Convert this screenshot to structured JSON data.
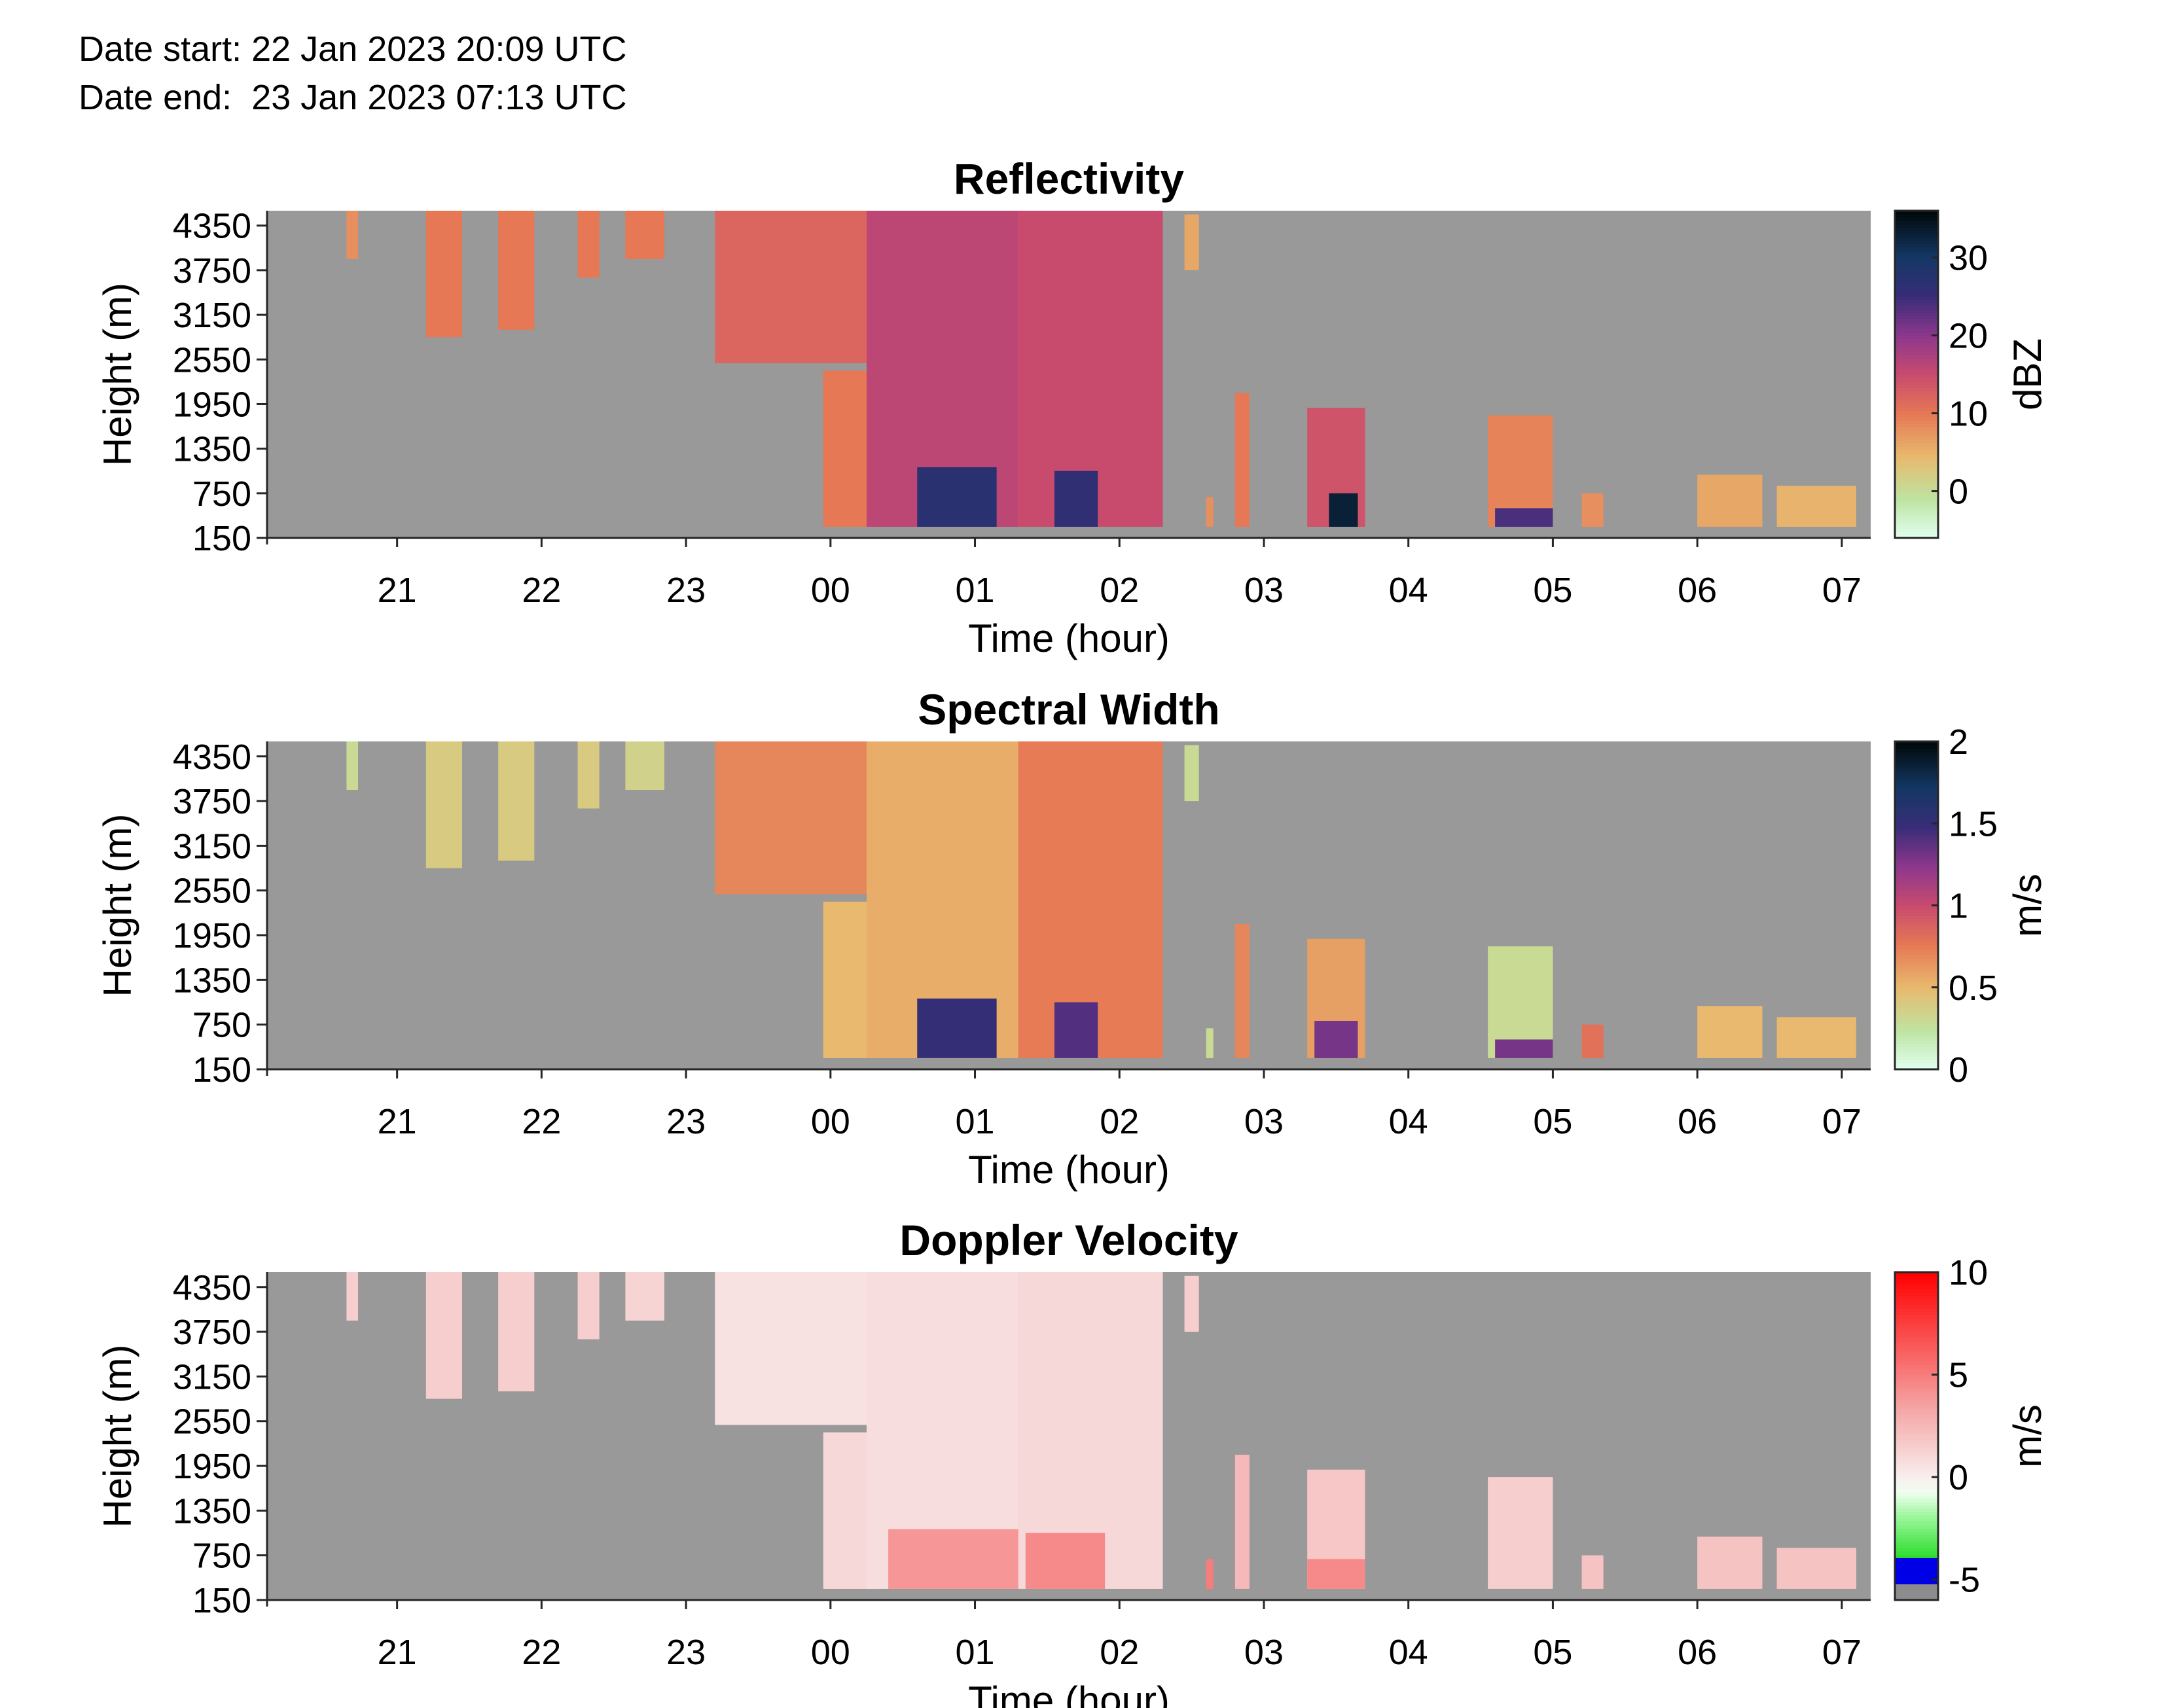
{
  "header": {
    "date_start_label": "Date start:",
    "date_start": "22 Jan 2023 20:09 UTC",
    "date_end_label": "Date end:",
    "date_end": "23 Jan 2023 07:13 UTC"
  },
  "chart_data": [
    {
      "type": "heatmap",
      "title": "Reflectivity",
      "xlabel": "Time (hour)",
      "ylabel": "Height (m)",
      "x_ticks": [
        "21",
        "22",
        "23",
        "00",
        "01",
        "02",
        "03",
        "04",
        "05",
        "06",
        "07"
      ],
      "y_ticks": [
        "150",
        "750",
        "1350",
        "1950",
        "2550",
        "3150",
        "3750",
        "4350"
      ],
      "xlim": [
        20.1,
        31.2
      ],
      "ylim": [
        150,
        4550
      ],
      "colorbar": {
        "label": "dBZ",
        "ticks": [
          "0",
          "10",
          "20",
          "30"
        ],
        "range": [
          -6,
          36
        ]
      },
      "colormap": "reflectivity",
      "background": "#999999",
      "grid": false,
      "echoes": [
        {
          "t_start": 20.65,
          "t_end": 20.73,
          "h_bottom": 3900,
          "h_top": 4550,
          "value": 8
        },
        {
          "t_start": 21.2,
          "t_end": 21.45,
          "h_bottom": 2850,
          "h_top": 4550,
          "value": 10
        },
        {
          "t_start": 21.7,
          "t_end": 21.95,
          "h_bottom": 2950,
          "h_top": 4550,
          "value": 10
        },
        {
          "t_start": 22.25,
          "t_end": 22.4,
          "h_bottom": 3650,
          "h_top": 4550,
          "value": 10
        },
        {
          "t_start": 22.58,
          "t_end": 22.85,
          "h_bottom": 3900,
          "h_top": 4550,
          "value": 10
        },
        {
          "t_start": 23.2,
          "t_end": 24.7,
          "h_bottom": 2500,
          "h_top": 4550,
          "value": 12
        },
        {
          "t_start": 23.95,
          "t_end": 24.35,
          "h_bottom": 300,
          "h_top": 2400,
          "value": 10
        },
        {
          "t_start": 24.25,
          "t_end": 25.3,
          "h_bottom": 300,
          "h_top": 4550,
          "value": 16
        },
        {
          "t_start": 24.6,
          "t_end": 25.15,
          "h_bottom": 300,
          "h_top": 1100,
          "value": 27
        },
        {
          "t_start": 25.3,
          "t_end": 26.3,
          "h_bottom": 300,
          "h_top": 4550,
          "value": 15
        },
        {
          "t_start": 25.55,
          "t_end": 25.85,
          "h_bottom": 300,
          "h_top": 1050,
          "value": 26
        },
        {
          "t_start": 26.45,
          "t_end": 26.55,
          "h_bottom": 3750,
          "h_top": 4500,
          "value": 6
        },
        {
          "t_start": 26.6,
          "t_end": 26.65,
          "h_bottom": 300,
          "h_top": 700,
          "value": 8
        },
        {
          "t_start": 26.8,
          "t_end": 26.9,
          "h_bottom": 300,
          "h_top": 2100,
          "value": 10
        },
        {
          "t_start": 27.3,
          "t_end": 27.7,
          "h_bottom": 300,
          "h_top": 1900,
          "value": 14
        },
        {
          "t_start": 27.45,
          "t_end": 27.65,
          "h_bottom": 300,
          "h_top": 750,
          "value": 33
        },
        {
          "t_start": 28.55,
          "t_end": 29.0,
          "h_bottom": 300,
          "h_top": 1800,
          "value": 9
        },
        {
          "t_start": 28.6,
          "t_end": 29.0,
          "h_bottom": 300,
          "h_top": 550,
          "value": 24
        },
        {
          "t_start": 29.2,
          "t_end": 29.35,
          "h_bottom": 300,
          "h_top": 750,
          "value": 8
        },
        {
          "t_start": 30.0,
          "t_end": 30.45,
          "h_bottom": 300,
          "h_top": 1000,
          "value": 6
        },
        {
          "t_start": 30.55,
          "t_end": 31.1,
          "h_bottom": 300,
          "h_top": 850,
          "value": 5
        }
      ]
    },
    {
      "type": "heatmap",
      "title": "Spectral Width",
      "xlabel": "Time (hour)",
      "ylabel": "Height (m)",
      "x_ticks": [
        "21",
        "22",
        "23",
        "00",
        "01",
        "02",
        "03",
        "04",
        "05",
        "06",
        "07"
      ],
      "y_ticks": [
        "150",
        "750",
        "1350",
        "1950",
        "2550",
        "3150",
        "3750",
        "4350"
      ],
      "xlim": [
        20.1,
        31.2
      ],
      "ylim": [
        150,
        4550
      ],
      "colorbar": {
        "label": "m/s",
        "ticks": [
          "0",
          "0.5",
          "1",
          "1.5",
          "2"
        ],
        "range": [
          0,
          2
        ]
      },
      "colormap": "reflectivity",
      "background": "#999999",
      "grid": false,
      "echoes": [
        {
          "t_start": 20.65,
          "t_end": 20.73,
          "h_bottom": 3900,
          "h_top": 4550,
          "value": 0.3
        },
        {
          "t_start": 21.2,
          "t_end": 21.45,
          "h_bottom": 2850,
          "h_top": 4550,
          "value": 0.4
        },
        {
          "t_start": 21.7,
          "t_end": 21.95,
          "h_bottom": 2950,
          "h_top": 4550,
          "value": 0.4
        },
        {
          "t_start": 22.25,
          "t_end": 22.4,
          "h_bottom": 3650,
          "h_top": 4550,
          "value": 0.4
        },
        {
          "t_start": 22.58,
          "t_end": 22.85,
          "h_bottom": 3900,
          "h_top": 4550,
          "value": 0.35
        },
        {
          "t_start": 23.2,
          "t_end": 24.7,
          "h_bottom": 2500,
          "h_top": 4550,
          "value": 0.7
        },
        {
          "t_start": 23.95,
          "t_end": 24.35,
          "h_bottom": 300,
          "h_top": 2400,
          "value": 0.5
        },
        {
          "t_start": 24.25,
          "t_end": 25.3,
          "h_bottom": 300,
          "h_top": 4550,
          "value": 0.55
        },
        {
          "t_start": 24.6,
          "t_end": 25.15,
          "h_bottom": 300,
          "h_top": 1100,
          "value": 1.5
        },
        {
          "t_start": 25.3,
          "t_end": 26.3,
          "h_bottom": 300,
          "h_top": 4550,
          "value": 0.75
        },
        {
          "t_start": 25.55,
          "t_end": 25.85,
          "h_bottom": 300,
          "h_top": 1050,
          "value": 1.4
        },
        {
          "t_start": 26.45,
          "t_end": 26.55,
          "h_bottom": 3750,
          "h_top": 4500,
          "value": 0.3
        },
        {
          "t_start": 26.6,
          "t_end": 26.65,
          "h_bottom": 300,
          "h_top": 700,
          "value": 0.3
        },
        {
          "t_start": 26.8,
          "t_end": 26.9,
          "h_bottom": 300,
          "h_top": 2100,
          "value": 0.7
        },
        {
          "t_start": 27.3,
          "t_end": 27.7,
          "h_bottom": 300,
          "h_top": 1900,
          "value": 0.6
        },
        {
          "t_start": 27.35,
          "t_end": 27.65,
          "h_bottom": 300,
          "h_top": 800,
          "value": 1.3
        },
        {
          "t_start": 28.55,
          "t_end": 29.0,
          "h_bottom": 300,
          "h_top": 1800,
          "value": 0.3
        },
        {
          "t_start": 28.6,
          "t_end": 29.0,
          "h_bottom": 300,
          "h_top": 550,
          "value": 1.3
        },
        {
          "t_start": 29.2,
          "t_end": 29.35,
          "h_bottom": 300,
          "h_top": 750,
          "value": 0.8
        },
        {
          "t_start": 30.0,
          "t_end": 30.45,
          "h_bottom": 300,
          "h_top": 1000,
          "value": 0.5
        },
        {
          "t_start": 30.55,
          "t_end": 31.1,
          "h_bottom": 300,
          "h_top": 850,
          "value": 0.5
        }
      ]
    },
    {
      "type": "heatmap",
      "title": "Doppler Velocity",
      "xlabel": "Time (hour)",
      "ylabel": "Height (m)",
      "x_ticks": [
        "21",
        "22",
        "23",
        "00",
        "01",
        "02",
        "03",
        "04",
        "05",
        "06",
        "07"
      ],
      "y_ticks": [
        "150",
        "750",
        "1350",
        "1950",
        "2550",
        "3150",
        "3750",
        "4350"
      ],
      "xlim": [
        20.1,
        31.2
      ],
      "ylim": [
        150,
        4550
      ],
      "colorbar": {
        "label": "m/s",
        "ticks": [
          "-5",
          "0",
          "5",
          "10"
        ],
        "range": [
          -6,
          10
        ]
      },
      "colormap": "velocity",
      "background": "#999999",
      "grid": false,
      "echoes": [
        {
          "t_start": 20.65,
          "t_end": 20.73,
          "h_bottom": 3900,
          "h_top": 4550,
          "value": 1.5
        },
        {
          "t_start": 21.2,
          "t_end": 21.45,
          "h_bottom": 2850,
          "h_top": 4550,
          "value": 1.5
        },
        {
          "t_start": 21.7,
          "t_end": 21.95,
          "h_bottom": 2950,
          "h_top": 4550,
          "value": 1.5
        },
        {
          "t_start": 22.25,
          "t_end": 22.4,
          "h_bottom": 3650,
          "h_top": 4550,
          "value": 1.5
        },
        {
          "t_start": 22.58,
          "t_end": 22.85,
          "h_bottom": 3900,
          "h_top": 4550,
          "value": 1.2
        },
        {
          "t_start": 23.2,
          "t_end": 24.7,
          "h_bottom": 2500,
          "h_top": 4550,
          "value": 0.6
        },
        {
          "t_start": 23.95,
          "t_end": 24.35,
          "h_bottom": 300,
          "h_top": 2400,
          "value": 1.0
        },
        {
          "t_start": 24.25,
          "t_end": 25.3,
          "h_bottom": 300,
          "h_top": 4550,
          "value": 0.8
        },
        {
          "t_start": 24.4,
          "t_end": 25.3,
          "h_bottom": 300,
          "h_top": 1100,
          "value": 4.0
        },
        {
          "t_start": 25.3,
          "t_end": 26.3,
          "h_bottom": 300,
          "h_top": 4550,
          "value": 1.0
        },
        {
          "t_start": 25.35,
          "t_end": 25.9,
          "h_bottom": 300,
          "h_top": 1050,
          "value": 4.5
        },
        {
          "t_start": 26.45,
          "t_end": 26.55,
          "h_bottom": 3750,
          "h_top": 4500,
          "value": 1.5
        },
        {
          "t_start": 26.6,
          "t_end": 26.65,
          "h_bottom": 300,
          "h_top": 700,
          "value": 5.0
        },
        {
          "t_start": 26.8,
          "t_end": 26.9,
          "h_bottom": 300,
          "h_top": 2100,
          "value": 2.5
        },
        {
          "t_start": 27.3,
          "t_end": 27.7,
          "h_bottom": 300,
          "h_top": 1900,
          "value": 1.8
        },
        {
          "t_start": 27.3,
          "t_end": 27.7,
          "h_bottom": 300,
          "h_top": 700,
          "value": 4.5
        },
        {
          "t_start": 28.55,
          "t_end": 29.0,
          "h_bottom": 300,
          "h_top": 1800,
          "value": 1.5
        },
        {
          "t_start": 29.2,
          "t_end": 29.35,
          "h_bottom": 300,
          "h_top": 750,
          "value": 2.0
        },
        {
          "t_start": 30.0,
          "t_end": 30.45,
          "h_bottom": 300,
          "h_top": 1000,
          "value": 2.0
        },
        {
          "t_start": 30.55,
          "t_end": 31.1,
          "h_bottom": 300,
          "h_top": 850,
          "value": 2.0
        }
      ]
    }
  ]
}
